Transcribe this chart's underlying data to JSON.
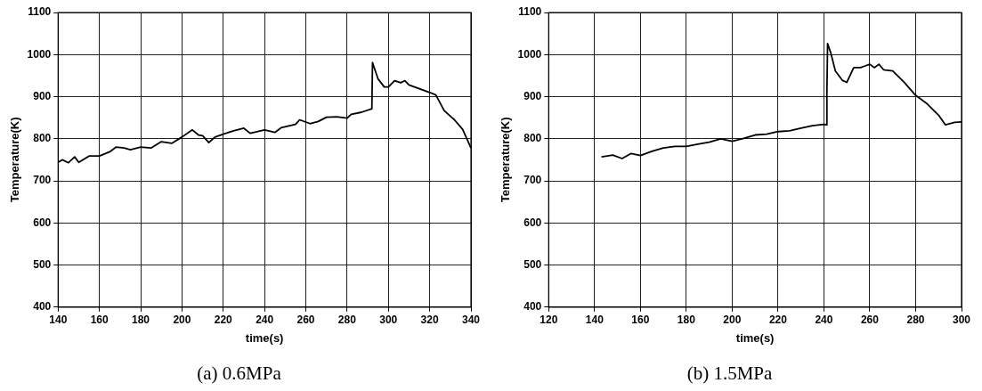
{
  "chart_data": [
    {
      "type": "line",
      "title": "(a) 0.6MPa",
      "xlabel": "time(s)",
      "ylabel": "Temperature(K)",
      "xlim": [
        140,
        340
      ],
      "xticks": [
        140,
        160,
        180,
        200,
        220,
        240,
        260,
        280,
        300,
        320,
        340
      ],
      "ylim": [
        400,
        1100
      ],
      "yticks": [
        400,
        500,
        600,
        700,
        800,
        900,
        1000,
        1100
      ],
      "grid": true,
      "legend": false,
      "marker": "none",
      "line_style": "solid",
      "series": [
        {
          "color": "#000000",
          "x": [
            140,
            142,
            145,
            148,
            150,
            155,
            160,
            165,
            168,
            172,
            175,
            180,
            185,
            190,
            195,
            200,
            205,
            208,
            210,
            213,
            216,
            220,
            225,
            230,
            233,
            240,
            245,
            248,
            255,
            257,
            262,
            266,
            270,
            275,
            280,
            282,
            287,
            292,
            292.3,
            295,
            298,
            300,
            303,
            306,
            308,
            310,
            315,
            320,
            323,
            327,
            332,
            336,
            340
          ],
          "values": [
            744,
            750,
            743,
            757,
            744,
            759,
            759,
            769,
            780,
            778,
            774,
            780,
            778,
            793,
            789,
            804,
            821,
            809,
            807,
            791,
            804,
            811,
            819,
            825,
            813,
            821,
            815,
            826,
            834,
            845,
            836,
            841,
            851,
            852,
            849,
            858,
            863,
            871,
            981,
            942,
            923,
            923,
            938,
            933,
            938,
            928,
            919,
            910,
            904,
            867,
            845,
            822,
            778
          ]
        }
      ]
    },
    {
      "type": "line",
      "title": "(b) 1.5MPa",
      "xlabel": "time(s)",
      "ylabel": "Temperature(K)",
      "xlim": [
        120,
        300
      ],
      "xticks": [
        120,
        140,
        160,
        180,
        200,
        220,
        240,
        260,
        280,
        300
      ],
      "ylim": [
        400,
        1100
      ],
      "yticks": [
        400,
        500,
        600,
        700,
        800,
        900,
        1000,
        1100
      ],
      "grid": true,
      "legend": false,
      "marker": "none",
      "line_style": "solid",
      "series": [
        {
          "color": "#000000",
          "x": [
            143,
            148,
            152,
            156,
            160,
            165,
            170,
            175,
            180,
            185,
            190,
            195,
            200,
            205,
            210,
            215,
            220,
            225,
            230,
            235,
            240,
            241,
            241.3,
            241.6,
            243,
            245,
            248,
            250,
            253,
            256,
            258,
            260,
            262,
            264,
            266,
            270,
            275,
            280,
            285,
            290,
            293,
            297,
            300
          ],
          "values": [
            757,
            761,
            753,
            765,
            760,
            770,
            778,
            782,
            782,
            787,
            792,
            800,
            794,
            801,
            809,
            811,
            817,
            819,
            825,
            831,
            834,
            833,
            907,
            1026,
            1004,
            961,
            939,
            934,
            969,
            969,
            973,
            977,
            969,
            977,
            964,
            961,
            934,
            903,
            883,
            856,
            833,
            839,
            840
          ]
        }
      ]
    }
  ]
}
